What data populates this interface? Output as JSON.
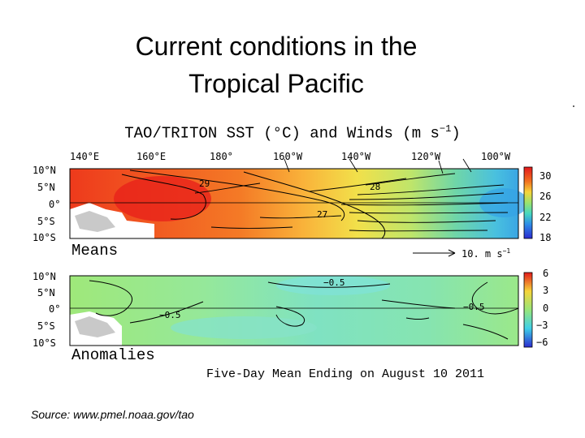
{
  "slide": {
    "title_line1": "Current conditions in the",
    "title_line2": "Tropical Pacific",
    "source": "Source:  www.pmel.noaa.gov/tao"
  },
  "figure": {
    "title": "TAO/TRITON SST (°C) and Winds (m s",
    "title_exp": "−1",
    "title_close": ")",
    "lon_labels": [
      "140°E",
      "160°E",
      "180°",
      "160°W",
      "140°W",
      "120°W",
      "100°W"
    ],
    "lat_labels": [
      "10°N",
      "5°N",
      "0°",
      "5°S",
      "10°S"
    ],
    "means_label": "Means",
    "wind_scale_label": "10. m s",
    "wind_scale_exp": "−1",
    "anomalies_label": "Anomalies",
    "period_label": "Five-Day Mean Ending on August 10 2011",
    "means_colorbar_ticks": [
      "30",
      "26",
      "22",
      "18"
    ],
    "anomaly_colorbar_ticks": [
      "6",
      "3",
      "0",
      "−3",
      "−6"
    ],
    "means_contour_labels": [
      "29",
      "28",
      "27"
    ],
    "anomaly_contour_labels": [
      "−0.5",
      "−0.5",
      "−0.5"
    ]
  }
}
